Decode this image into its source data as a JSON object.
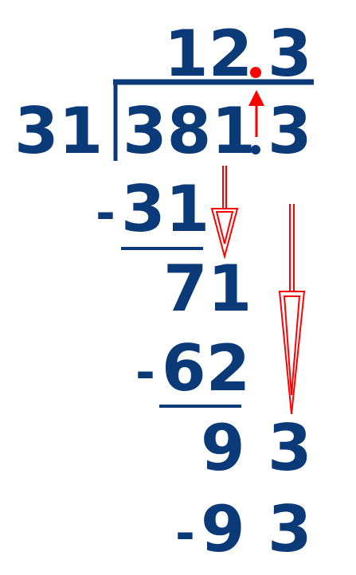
{
  "colors": {
    "ink": "#0b3a78",
    "accent": "#ff0000"
  },
  "quotient": {
    "int_part": "12",
    "frac_part": "3"
  },
  "divisor": "31",
  "dividend": {
    "int_part": "381",
    "frac_part": "3"
  },
  "steps": [
    {
      "minus": "-",
      "value": "31"
    },
    {
      "value": "71"
    },
    {
      "minus": "-",
      "value": "62"
    },
    {
      "value": "9",
      "extra": "3"
    },
    {
      "minus": "-",
      "value": "9",
      "extra": "3"
    }
  ]
}
